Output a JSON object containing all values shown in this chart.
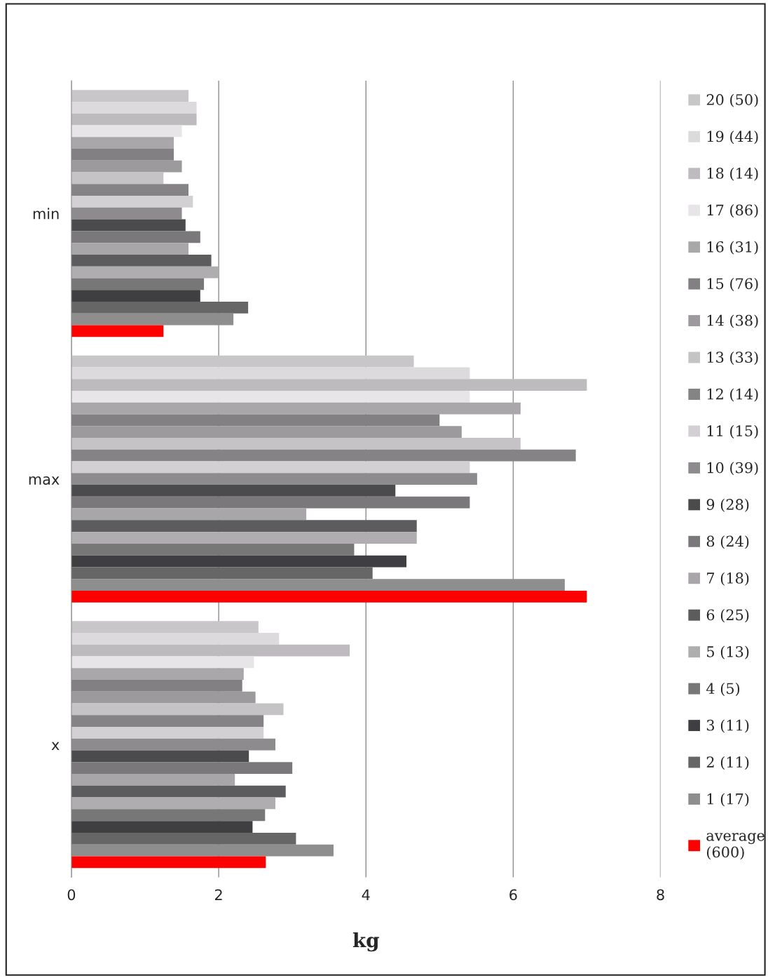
{
  "chart_data": {
    "type": "bar",
    "orientation": "horizontal",
    "xlabel": "kg",
    "categories": [
      "min",
      "max",
      "x"
    ],
    "xlim": [
      0,
      8
    ],
    "xticks": [
      0,
      2,
      4,
      6,
      8
    ],
    "grid": "x",
    "legend": "right",
    "series": [
      {
        "name": "20 (50)",
        "color": "#c8c6c9",
        "values": [
          1.59,
          4.65,
          2.54
        ]
      },
      {
        "name": "19 (44)",
        "color": "#dcdadd",
        "values": [
          1.7,
          5.41,
          2.82
        ]
      },
      {
        "name": "18 (14)",
        "color": "#bdbbbe",
        "values": [
          1.7,
          7.0,
          3.78
        ]
      },
      {
        "name": "17 (86)",
        "color": "#e8e5e8",
        "values": [
          1.5,
          5.41,
          2.48
        ]
      },
      {
        "name": "16 (31)",
        "color": "#a9a7aa",
        "values": [
          1.39,
          6.1,
          2.34
        ]
      },
      {
        "name": "15 (76)",
        "color": "#828083",
        "values": [
          1.39,
          5.0,
          2.32
        ]
      },
      {
        "name": "14 (38)",
        "color": "#9c9a9d",
        "values": [
          1.5,
          5.3,
          2.5
        ]
      },
      {
        "name": "13 (33)",
        "color": "#c5c3c6",
        "values": [
          1.25,
          6.1,
          2.88
        ]
      },
      {
        "name": "12 (14)",
        "color": "#858386",
        "values": [
          1.59,
          6.85,
          2.61
        ]
      },
      {
        "name": "11 (15)",
        "color": "#d2d0d3",
        "values": [
          1.65,
          5.41,
          2.61
        ]
      },
      {
        "name": "10 (39)",
        "color": "#8d8b8e",
        "values": [
          1.5,
          5.51,
          2.77
        ]
      },
      {
        "name": "9 (28)",
        "color": "#4b4b4d",
        "values": [
          1.55,
          4.4,
          2.41
        ]
      },
      {
        "name": "8 (24)",
        "color": "#7a787b",
        "values": [
          1.75,
          5.41,
          3.0
        ]
      },
      {
        "name": "7 (18)",
        "color": "#a8a6a9",
        "values": [
          1.59,
          3.19,
          2.22
        ]
      },
      {
        "name": "6 (25)",
        "color": "#5c5b5d",
        "values": [
          1.9,
          4.69,
          2.91
        ]
      },
      {
        "name": "5 (13)",
        "color": "#afadb0",
        "values": [
          2.0,
          4.69,
          2.77
        ]
      },
      {
        "name": "4 (5)",
        "color": "#777777",
        "values": [
          1.8,
          3.84,
          2.63
        ]
      },
      {
        "name": "3 (11)",
        "color": "#3f3e40",
        "values": [
          1.75,
          4.55,
          2.46
        ]
      },
      {
        "name": "2 (11)",
        "color": "#666666",
        "values": [
          2.4,
          4.09,
          3.05
        ]
      },
      {
        "name": "1 (17)",
        "color": "#8e8e8e",
        "values": [
          2.2,
          6.7,
          3.56
        ]
      },
      {
        "name": "average (600)",
        "color": "#ff0000",
        "values": [
          1.25,
          7.0,
          2.64
        ]
      }
    ]
  }
}
